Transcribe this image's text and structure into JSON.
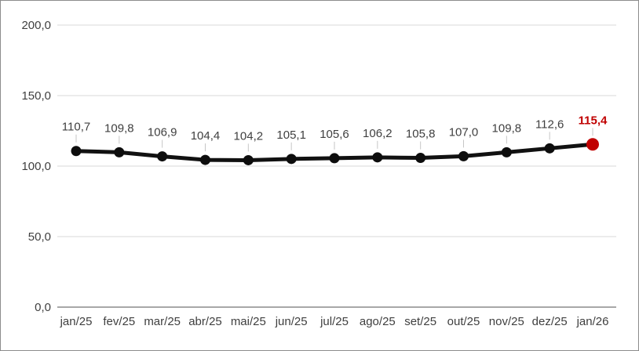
{
  "chart_data": {
    "type": "line",
    "title": "",
    "xlabel": "",
    "ylabel": "",
    "categories": [
      "jan/25",
      "fev/25",
      "mar/25",
      "abr/25",
      "mai/25",
      "jun/25",
      "jul/25",
      "ago/25",
      "set/25",
      "out/25",
      "nov/25",
      "dez/25",
      "jan/26"
    ],
    "values": [
      110.7,
      109.8,
      106.9,
      104.4,
      104.2,
      105.1,
      105.6,
      106.2,
      105.8,
      107.0,
      109.8,
      112.6,
      115.4
    ],
    "value_labels": [
      "110,7",
      "109,8",
      "106,9",
      "104,4",
      "104,2",
      "105,1",
      "105,6",
      "106,2",
      "105,8",
      "107,0",
      "109,8",
      "112,6",
      "115,4"
    ],
    "y_tick_values": [
      0,
      50,
      100,
      150,
      200
    ],
    "y_tick_labels": [
      "0,0",
      "50,0",
      "100,0",
      "150,0",
      "200,0"
    ],
    "ylim": [
      0,
      200
    ],
    "grid": true,
    "legend_position": "none",
    "colors": {
      "line": "#111111",
      "marker": "#0d0d0d",
      "highlight": "#c00000",
      "data_label": "#3f3f3f",
      "tick_label": "#3f3f3f",
      "gridline": "#d9d9d9",
      "axis_line": "#8c8c8c",
      "leader_line": "#c6c6c6",
      "background": "#ffffff"
    },
    "highlight_last_point": true
  }
}
